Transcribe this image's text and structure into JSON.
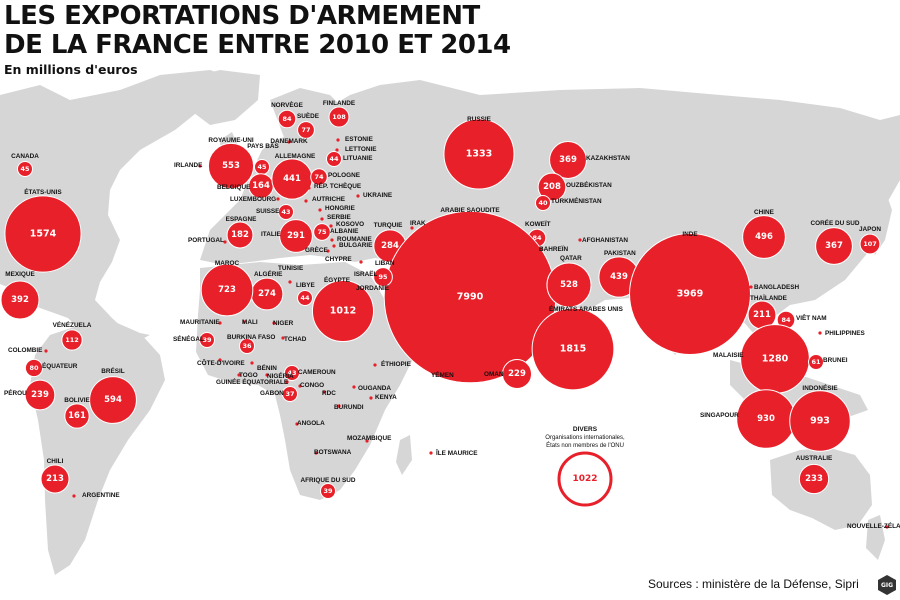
{
  "title_lines": [
    "LES EXPORTATIONS D'ARMEMENT",
    "DE LA FRANCE ENTRE 2010 ET 2014"
  ],
  "subtitle": "En millions d'euros",
  "sources": "Sources : ministère de la Défense, Sipri",
  "logo_text": "GIG",
  "colors": {
    "bubble": "#e8202a",
    "land": "#d6d6d6",
    "text": "#111111"
  },
  "divers": {
    "title": "DIVERS",
    "lines": [
      "Organisations internationales,",
      "États non membres de l'ONU"
    ],
    "value": 1022
  },
  "chart_data": {
    "type": "bubble-map",
    "unit": "millions d'euros",
    "countries": [
      {
        "name": "CANADA",
        "value": 45
      },
      {
        "name": "ÉTATS-UNIS",
        "value": 1574
      },
      {
        "name": "MEXIQUE",
        "value": 392
      },
      {
        "name": "VÉNÉZUELA",
        "value": 112
      },
      {
        "name": "COLOMBIE",
        "value": null
      },
      {
        "name": "ÉQUATEUR",
        "value": 80
      },
      {
        "name": "PÉROU",
        "value": 239
      },
      {
        "name": "BRÉSIL",
        "value": 594
      },
      {
        "name": "BOLIVIE",
        "value": 161
      },
      {
        "name": "CHILI",
        "value": 213
      },
      {
        "name": "ARGENTINE",
        "value": null
      },
      {
        "name": "ROYAUME-UNI",
        "value": 553
      },
      {
        "name": "IRLANDE",
        "value": null
      },
      {
        "name": "PAYS BAS",
        "value": 45
      },
      {
        "name": "BELGIQUE",
        "value": 164
      },
      {
        "name": "LUXEMBOURG",
        "value": null
      },
      {
        "name": "DANEMARK",
        "value": null
      },
      {
        "name": "ALLEMAGNE",
        "value": 441
      },
      {
        "name": "NORVÈGE",
        "value": 84
      },
      {
        "name": "SUÈDE",
        "value": 77
      },
      {
        "name": "FINLANDE",
        "value": 108
      },
      {
        "name": "ESTONIE",
        "value": null
      },
      {
        "name": "LETTONIE",
        "value": null
      },
      {
        "name": "LITUANIE",
        "value": 44
      },
      {
        "name": "POLOGNE",
        "value": 74
      },
      {
        "name": "RÉP. TCHÈQUE",
        "value": null
      },
      {
        "name": "UKRAINE",
        "value": null
      },
      {
        "name": "AUTRICHE",
        "value": null
      },
      {
        "name": "HONGRIE",
        "value": null
      },
      {
        "name": "SUISSE",
        "value": 43
      },
      {
        "name": "SERBIE",
        "value": null
      },
      {
        "name": "KOSOVO",
        "value": null
      },
      {
        "name": "ALBANIE",
        "value": 75
      },
      {
        "name": "ROUMANIE",
        "value": null
      },
      {
        "name": "BULGARIE",
        "value": null
      },
      {
        "name": "ESPAGNE",
        "value": 182
      },
      {
        "name": "PORTUGAL",
        "value": null
      },
      {
        "name": "ITALIE",
        "value": 291
      },
      {
        "name": "GRÈCE",
        "value": null
      },
      {
        "name": "CHYPRE",
        "value": null
      },
      {
        "name": "TURQUIE",
        "value": 284
      },
      {
        "name": "RUSSIE",
        "value": 1333
      },
      {
        "name": "KAZAKHSTAN",
        "value": 369
      },
      {
        "name": "OUZBÉKISTAN",
        "value": 208
      },
      {
        "name": "TURKMÉNISTAN",
        "value": 40
      },
      {
        "name": "IRAK",
        "value": null
      },
      {
        "name": "KOWEÏT",
        "value": 84
      },
      {
        "name": "ARABIE SAOUDITE",
        "value": 7990
      },
      {
        "name": "BAHREÏN",
        "value": null
      },
      {
        "name": "QATAR",
        "value": 528
      },
      {
        "name": "ÉMIRATS ARABES UNIS",
        "value": 1815
      },
      {
        "name": "OMAN",
        "value": 229
      },
      {
        "name": "YÉMEN",
        "value": null
      },
      {
        "name": "AFGHANISTAN",
        "value": null
      },
      {
        "name": "PAKISTAN",
        "value": 439
      },
      {
        "name": "INDE",
        "value": 3969
      },
      {
        "name": "CHINE",
        "value": 496
      },
      {
        "name": "CORÉE DU SUD",
        "value": 367
      },
      {
        "name": "JAPON",
        "value": 107
      },
      {
        "name": "BANGLADESH",
        "value": null
      },
      {
        "name": "THAÏLANDE",
        "value": 211
      },
      {
        "name": "VIÊT NAM",
        "value": 84
      },
      {
        "name": "PHILIPPINES",
        "value": null
      },
      {
        "name": "MALAISIE",
        "value": 1280
      },
      {
        "name": "BRUNEI",
        "value": 61
      },
      {
        "name": "SINGAPOUR",
        "value": 930
      },
      {
        "name": "INDONÉSIE",
        "value": 993
      },
      {
        "name": "AUSTRALIE",
        "value": 233
      },
      {
        "name": "NOUVELLE-ZÉLANDE",
        "value": null
      },
      {
        "name": "LIBAN",
        "value": null
      },
      {
        "name": "ISRAËL",
        "value": 95
      },
      {
        "name": "JORDANIE",
        "value": null
      },
      {
        "name": "ÉGYPTE",
        "value": 1012
      },
      {
        "name": "LIBYE",
        "value": 44
      },
      {
        "name": "TUNISIE",
        "value": null
      },
      {
        "name": "ALGÉRIE",
        "value": 274
      },
      {
        "name": "MAROC",
        "value": 723
      },
      {
        "name": "MAURITANIE",
        "value": null
      },
      {
        "name": "MALI",
        "value": null
      },
      {
        "name": "NIGER",
        "value": null
      },
      {
        "name": "SÉNÉGAL",
        "value": 39
      },
      {
        "name": "BURKINA FASO",
        "value": 36
      },
      {
        "name": "TCHAD",
        "value": null
      },
      {
        "name": "CÔTE-D'IVOIRE",
        "value": null
      },
      {
        "name": "BÉNIN",
        "value": null
      },
      {
        "name": "TOGO",
        "value": null
      },
      {
        "name": "NIGÉRIA",
        "value": null
      },
      {
        "name": "CAMEROUN",
        "value": 43
      },
      {
        "name": "GUINÉE ÉQUATORIALE",
        "value": null
      },
      {
        "name": "GABON",
        "value": 37
      },
      {
        "name": "CONGO",
        "value": null
      },
      {
        "name": "RDC",
        "value": null
      },
      {
        "name": "OUGANDA",
        "value": null
      },
      {
        "name": "KENYA",
        "value": null
      },
      {
        "name": "BURUNDI",
        "value": null
      },
      {
        "name": "ÉTHIOPIE",
        "value": null
      },
      {
        "name": "ANGOLA",
        "value": null
      },
      {
        "name": "MOZAMBIQUE",
        "value": null
      },
      {
        "name": "BOTSWANA",
        "value": null
      },
      {
        "name": "AFRIQUE DU SUD",
        "value": 39
      },
      {
        "name": "ÎLE MAURICE",
        "value": null
      }
    ]
  }
}
